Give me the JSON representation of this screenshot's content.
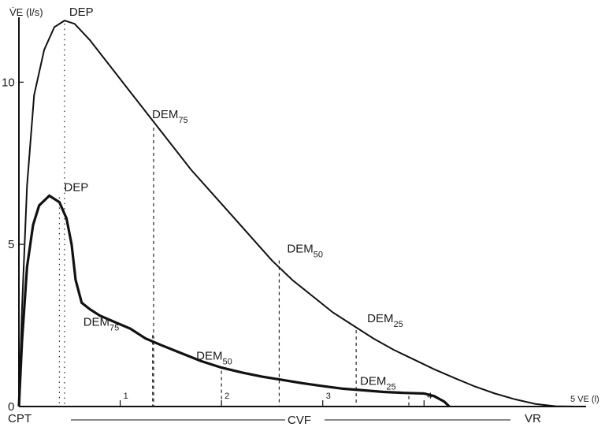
{
  "chart_data": {
    "type": "line",
    "y_axis_label": "V̇E (l/s)",
    "x_axis_label": "5 VE (l)",
    "ylim": [
      0,
      12
    ],
    "xlim": [
      0,
      5.6
    ],
    "y_ticks": [
      {
        "value": 0,
        "label": "0"
      },
      {
        "value": 5,
        "label": "5"
      },
      {
        "value": 10,
        "label": "10"
      }
    ],
    "x_ticks": [
      {
        "value": 1,
        "label": "1"
      },
      {
        "value": 2,
        "label": "2"
      },
      {
        "value": 3,
        "label": "3"
      },
      {
        "value": 4,
        "label": "4"
      }
    ],
    "series": [
      {
        "key": "normal",
        "x": [
          0,
          0.03,
          0.08,
          0.15,
          0.25,
          0.35,
          0.45,
          0.55,
          0.7,
          0.9,
          1.1,
          1.3,
          1.5,
          1.7,
          1.9,
          2.1,
          2.3,
          2.5,
          2.7,
          2.9,
          3.1,
          3.3,
          3.5,
          3.7,
          3.9,
          4.1,
          4.3,
          4.5,
          4.7,
          4.9,
          5.1,
          5.3,
          5.5
        ],
        "y": [
          0,
          3.0,
          6.8,
          9.6,
          11.0,
          11.7,
          11.9,
          11.8,
          11.3,
          10.5,
          9.7,
          8.9,
          8.1,
          7.3,
          6.6,
          5.9,
          5.2,
          4.5,
          3.9,
          3.4,
          2.9,
          2.5,
          2.1,
          1.75,
          1.45,
          1.15,
          0.88,
          0.62,
          0.4,
          0.22,
          0.08,
          0.01,
          0
        ]
      },
      {
        "key": "obstructive",
        "x": [
          0,
          0.03,
          0.08,
          0.14,
          0.2,
          0.3,
          0.4,
          0.47,
          0.52,
          0.56,
          0.62,
          0.7,
          0.8,
          0.95,
          1.1,
          1.25,
          1.4,
          1.6,
          1.8,
          2.0,
          2.2,
          2.4,
          2.6,
          2.8,
          3.0,
          3.2,
          3.4,
          3.6,
          3.8,
          4.0,
          4.1,
          4.2,
          4.25
        ],
        "y": [
          0,
          2.0,
          4.3,
          5.6,
          6.2,
          6.5,
          6.3,
          5.8,
          5.0,
          3.9,
          3.2,
          3.0,
          2.8,
          2.6,
          2.4,
          2.1,
          1.9,
          1.65,
          1.4,
          1.2,
          1.05,
          0.92,
          0.82,
          0.72,
          0.63,
          0.55,
          0.5,
          0.45,
          0.42,
          0.4,
          0.32,
          0.15,
          0
        ]
      }
    ],
    "annotations": [
      {
        "key": "normal_dep",
        "text": "DEP",
        "x": 0.45,
        "y": 11.9
      },
      {
        "key": "normal_dem75",
        "text": "DEM",
        "sub": "75",
        "x": 1.33,
        "y": 8.7
      },
      {
        "key": "normal_dem50",
        "text": "DEM",
        "sub": "50",
        "x": 2.57,
        "y": 4.6
      },
      {
        "key": "normal_dem25",
        "text": "DEM",
        "sub": "25",
        "x": 3.33,
        "y": 2.45
      },
      {
        "key": "obs_dep",
        "text": "DEP",
        "x": 0.4,
        "y": 6.55
      },
      {
        "key": "obs_dem75",
        "text": "DEM",
        "sub": "75",
        "x": 1.32,
        "y": 2.3
      },
      {
        "key": "obs_dem50",
        "text": "DEM",
        "sub": "50",
        "x": 2.0,
        "y": 1.2
      },
      {
        "key": "obs_dem25",
        "text": "DEM",
        "sub": "25",
        "x": 3.85,
        "y": 0.42
      }
    ],
    "bottom_labels": {
      "left": "CPT",
      "center": "CVF",
      "right": "VR"
    },
    "grid": false,
    "legend": "none"
  }
}
